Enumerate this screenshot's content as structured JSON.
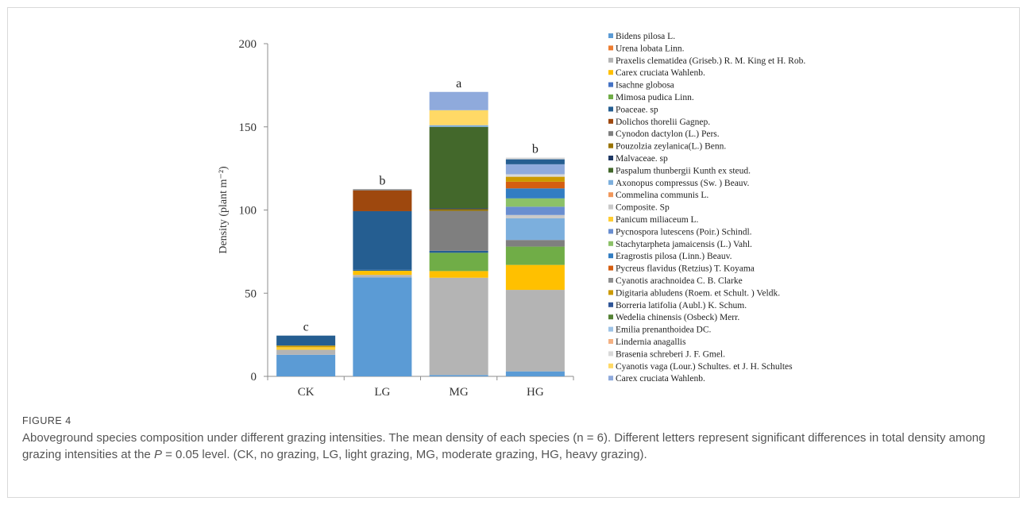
{
  "figure": {
    "label": "FIGURE 4",
    "caption_pre": "Aboveground species composition under different grazing intensities. The mean density of each species (n = 6). Different letters represent significant differences in total density among grazing intensities at the ",
    "caption_p": "P",
    "caption_post": " = 0.05 level. (CK, no grazing, LG, light grazing, MG, moderate grazing, HG, heavy grazing)."
  },
  "chart_data": {
    "type": "bar",
    "stacked": true,
    "ylabel": "Density (plant m⁻²)",
    "xlabel": "",
    "ylim": [
      0,
      200
    ],
    "yticks": [
      0,
      50,
      100,
      150,
      200
    ],
    "grid": false,
    "legend_position": "right",
    "categories": [
      "CK",
      "LG",
      "MG",
      "HG"
    ],
    "significance_letters": [
      "c",
      "b",
      "a",
      "b"
    ],
    "series": [
      {
        "name": "Bidens pilosa L.",
        "color": "#5b9bd5",
        "values": [
          13,
          59.5,
          0.8,
          3
        ]
      },
      {
        "name": "Urena lobata Linn.",
        "color": "#ed7d31",
        "values": [
          0,
          0,
          0,
          0
        ]
      },
      {
        "name": "Praxelis clematidea (Griseb.) R. M. King et H. Rob.",
        "color": "#b4b4b4",
        "values": [
          3,
          1.5,
          58.5,
          49
        ]
      },
      {
        "name": "Carex cruciata Wahlenb.",
        "color": "#ffc000",
        "values": [
          0,
          2.5,
          4,
          15
        ]
      },
      {
        "name": "Isachne globosa",
        "color": "#4472c4",
        "values": [
          0,
          0,
          0,
          0
        ]
      },
      {
        "name": "Mimosa pudica Linn.",
        "color": "#70ad47",
        "values": [
          0,
          0,
          11,
          11
        ]
      },
      {
        "name": "Poaceae. sp",
        "color": "#255e91",
        "values": [
          0,
          0.8,
          1.2,
          0
        ]
      },
      {
        "name": "Dolichos thorelii Gagnep.",
        "color": "#9e480e",
        "values": [
          0,
          0,
          0,
          0
        ]
      },
      {
        "name": "Cynodon dactylon (L.) Pers.",
        "color": "#7f7f7f",
        "values": [
          0,
          0,
          24,
          4
        ]
      },
      {
        "name": "Pouzolzia zeylanica(L.) Benn.",
        "color": "#997300",
        "values": [
          0,
          0,
          1,
          0
        ]
      },
      {
        "name": "Malvaceae. sp",
        "color": "#1f3864",
        "values": [
          0,
          0,
          0.5,
          0
        ]
      },
      {
        "name": "Paspalum thunbergii Kunth ex steud.",
        "color": "#43682b",
        "values": [
          0,
          0,
          49,
          0
        ]
      },
      {
        "name": "Axonopus compressus (Sw. ) Beauv.",
        "color": "#7cafdd",
        "values": [
          0,
          0,
          1,
          13
        ]
      },
      {
        "name": "Commelina communis L.",
        "color": "#f1975a",
        "values": [
          0,
          0,
          0,
          0
        ]
      },
      {
        "name": "Composite. Sp",
        "color": "#c9c9c9",
        "values": [
          0,
          0,
          0,
          2
        ]
      },
      {
        "name": "Panicum miliaceum L.",
        "color": "#ffcd33",
        "values": [
          1.5,
          0,
          0,
          0
        ]
      },
      {
        "name": "Pycnospora lutescens (Poir.) Schindl.",
        "color": "#698ed0",
        "values": [
          0,
          0,
          0,
          5
        ]
      },
      {
        "name": "Stachytarpheta jamaicensis (L.) Vahl.",
        "color": "#8cc168",
        "values": [
          0,
          0,
          0,
          5
        ]
      },
      {
        "name": "Eragrostis pilosa (Linn.) Beauv.",
        "color": "#327dc2",
        "values": [
          0,
          0,
          0,
          6
        ]
      },
      {
        "name": "Pycreus flavidus (Retzius) T. Koyama",
        "color": "#d55e11",
        "values": [
          0,
          0,
          0,
          4
        ]
      },
      {
        "name": "Cyanotis arachnoidea C. B. Clarke",
        "color": "#909090",
        "values": [
          0,
          0,
          0,
          0
        ]
      },
      {
        "name": "Digitaria abludens (Roem. et Schult. ) Veldk.",
        "color": "#cc9a00",
        "values": [
          1,
          0,
          0,
          3
        ]
      },
      {
        "name": "Borreria latifolia (Aubl.) K. Schum.",
        "color": "#2f5597",
        "values": [
          0,
          0,
          0,
          0
        ]
      },
      {
        "name": "Wedelia chinensis (Osbeck) Merr.",
        "color": "#548235",
        "values": [
          0,
          0,
          0,
          0
        ]
      },
      {
        "name": "Emilia prenanthoidea DC.",
        "color": "#9dc3e6",
        "values": [
          0,
          0,
          0,
          0
        ]
      },
      {
        "name": "Lindernia anagallis",
        "color": "#f4b183",
        "values": [
          0,
          0,
          0,
          0
        ]
      },
      {
        "name": "Brasenia schreberi J. F. Gmel.",
        "color": "#d9d9d9",
        "values": [
          0,
          0,
          0,
          1.5
        ]
      },
      {
        "name": "Cyanotis vaga (Lour.) Schultes. et J. H. Schultes",
        "color": "#ffd966",
        "values": [
          0,
          0,
          9,
          0
        ]
      },
      {
        "name": "Carex cruciata Wahlenb.",
        "color": "#8faadc",
        "values": [
          0,
          0,
          11,
          6
        ]
      }
    ],
    "extra_segments": [
      {
        "category": "CK",
        "color": "#255e91",
        "value": 6
      },
      {
        "category": "LG",
        "color": "#255e91",
        "value": 35
      },
      {
        "category": "LG",
        "color": "#9e480e",
        "value": 12.5
      },
      {
        "category": "LG",
        "color": "#7f7f7f",
        "value": 0.7
      },
      {
        "category": "HG",
        "color": "#255e91",
        "value": 3
      },
      {
        "category": "HG",
        "color": "#d9d9d9",
        "value": 1
      }
    ]
  }
}
